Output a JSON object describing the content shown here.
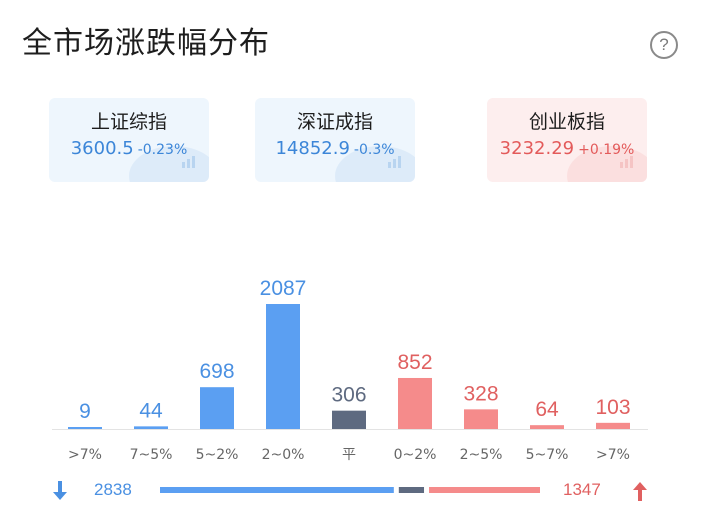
{
  "page": {
    "title": "全市场涨跌幅分布",
    "help_symbol": "?"
  },
  "indices": [
    {
      "name": "上证综指",
      "value": "3600.5",
      "change": "-0.23%",
      "trend": "down"
    },
    {
      "name": "深证成指",
      "value": "14852.9",
      "change": "-0.3%",
      "trend": "down"
    },
    {
      "name": "创业板指",
      "value": "3232.29",
      "change": "+0.19%",
      "trend": "up"
    }
  ],
  "colors": {
    "down": "#5b9ff2",
    "flat": "#5e6a80",
    "up": "#f58b8b",
    "down_text": "#4a90e2",
    "up_text": "#e06060"
  },
  "chart_data": {
    "type": "bar",
    "categories": [
      ">7%",
      "7~5%",
      "5~2%",
      "2~0%",
      "平",
      "0~2%",
      "2~5%",
      "5~7%",
      ">7%"
    ],
    "values": [
      9,
      44,
      698,
      2087,
      306,
      852,
      328,
      64,
      103
    ],
    "groups": [
      "down",
      "down",
      "down",
      "down",
      "flat",
      "up",
      "up",
      "up",
      "up"
    ]
  },
  "summary": {
    "down_total": "2838",
    "up_total": "1347",
    "down_count": 2838,
    "flat_count": 306,
    "up_count": 1347
  }
}
